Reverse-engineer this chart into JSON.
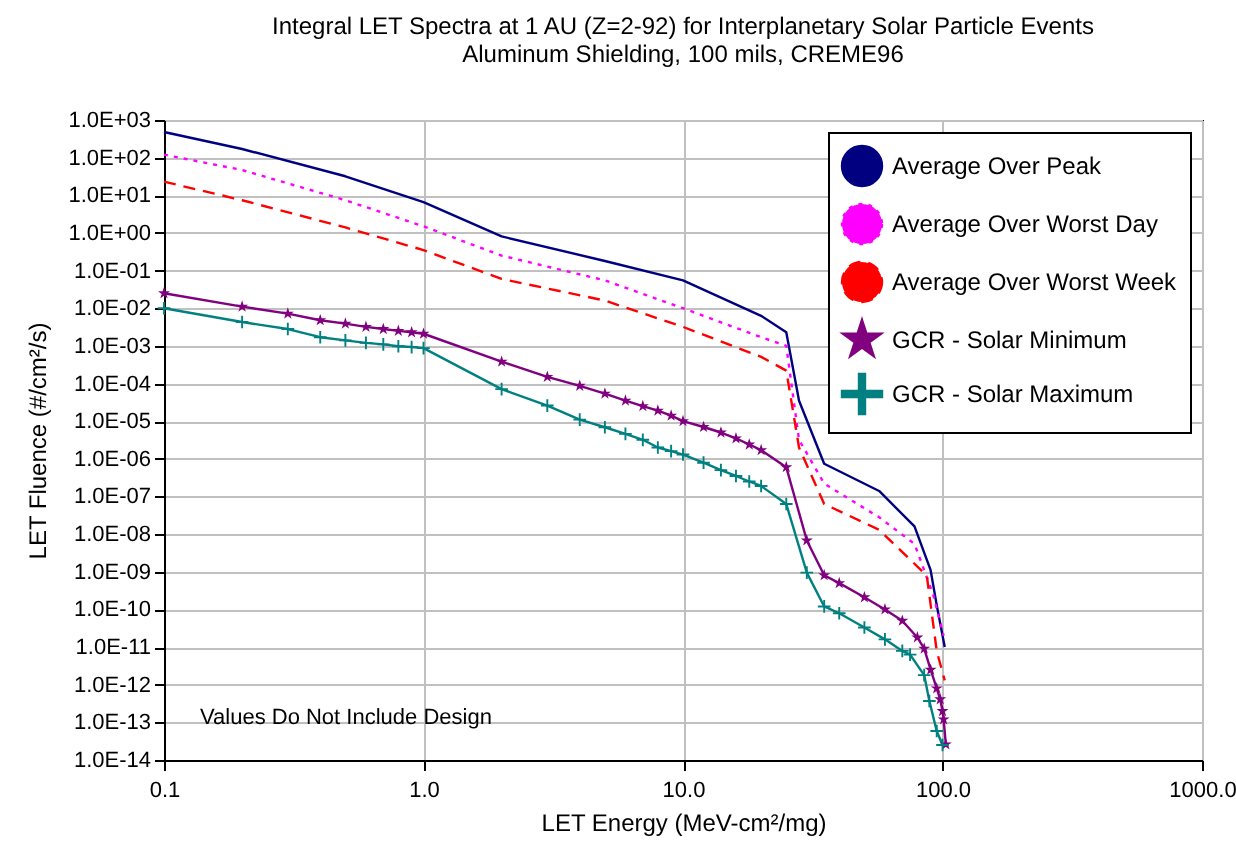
{
  "chart_data": {
    "type": "line",
    "title": "Integral LET Spectra at 1 AU (Z=2-92) for Interplanetary Solar Particle Events",
    "subtitle": "Aluminum Shielding, 100 mils, CREME96",
    "xlabel": "LET Energy (MeV-cm²/mg)",
    "ylabel": "LET Fluence (#/cm²/s)",
    "annotations": [
      "Values Do Not Include Design"
    ],
    "log": "xy",
    "grid": true,
    "legend": "top right",
    "xlim": [
      0.1,
      1000
    ],
    "xticks": [
      0.1,
      {
        "value": 1,
        "label": "1.0"
      },
      {
        "value": 10,
        "label": "10.0"
      },
      {
        "value": 100,
        "label": "100.0"
      },
      {
        "value": 1000,
        "label": "1000.0"
      }
    ],
    "ylim": [
      1e-14,
      1000
    ],
    "yticks": [
      {
        "value": 1000.0,
        "label": "1.0E+03"
      },
      {
        "value": 100.0,
        "label": "1.0E+02"
      },
      {
        "value": 10.0,
        "label": "1.0E+01"
      },
      {
        "value": 1,
        "label": "1.0E+00"
      },
      {
        "value": 0.1,
        "label": "1.0E-01"
      },
      {
        "value": 0.01,
        "label": "1.0E-02"
      },
      {
        "value": 0.001,
        "label": "1.0E-03"
      },
      {
        "value": 0.0001,
        "label": "1.0E-04"
      },
      {
        "value": 1e-05,
        "label": "1.0E-05"
      },
      {
        "value": 1e-06,
        "label": "1.0E-06"
      },
      {
        "value": 1e-07,
        "label": "1.0E-07"
      },
      {
        "value": 1e-08,
        "label": "1.0E-08"
      },
      {
        "value": 1e-09,
        "label": "1.0E-09"
      },
      {
        "value": 1e-10,
        "label": "1.0E-10"
      },
      {
        "value": 1e-11,
        "label": "1.0E-11"
      },
      {
        "value": 1e-12,
        "label": "1.0E-12"
      },
      {
        "value": 1e-13,
        "label": "1.0E-13"
      },
      {
        "value": 1e-14,
        "label": "1.0E-14"
      }
    ],
    "series": [
      {
        "name": "Average Over Peak",
        "color": "#000080",
        "line_style": "solid",
        "marker": "none",
        "x": [
          0.1,
          0.2,
          0.5,
          1,
          2,
          5,
          10,
          20,
          25,
          28,
          35,
          57,
          78,
          90,
          95,
          102
        ],
        "values": [
          480,
          170,
          32,
          6.6,
          0.81,
          0.18,
          0.055,
          0.0063,
          0.0023,
          3.5e-05,
          7.4e-07,
          1.4e-07,
          1.6e-08,
          1.1e-09,
          1.3e-10,
          1e-11
        ]
      },
      {
        "name": "Average Over Worst Day",
        "color": "#ff00ff",
        "line_style": "dotted",
        "marker": "none",
        "x": [
          0.1,
          0.2,
          0.5,
          1,
          2,
          5,
          10,
          20,
          25,
          28,
          35,
          57,
          78,
          92,
          101
        ],
        "values": [
          120,
          47,
          7.4,
          1.5,
          0.25,
          0.055,
          0.01,
          0.0017,
          0.001,
          3.2e-06,
          2.2e-07,
          2.8e-08,
          5.5e-09,
          2.5e-10,
          2e-11
        ]
      },
      {
        "name": "Average Over Worst Week",
        "color": "#ff0000",
        "line_style": "dashed",
        "marker": "none",
        "x": [
          0.1,
          0.2,
          0.5,
          1,
          2,
          5,
          10,
          20,
          25,
          28,
          35,
          57,
          87,
          95,
          102
        ],
        "values": [
          23,
          7.4,
          1.4,
          0.35,
          0.06,
          0.016,
          0.0032,
          0.00051,
          0.00022,
          2e-06,
          6.3e-08,
          1.3e-08,
          7.9e-10,
          7.9e-12,
          1.3e-12
        ]
      },
      {
        "name": "GCR - Solar Minimum",
        "color": "#800080",
        "line_style": "solid",
        "marker": "star",
        "x": [
          0.1,
          0.2,
          0.3,
          0.4,
          0.5,
          0.6,
          0.7,
          0.8,
          0.9,
          1,
          2,
          3,
          4,
          5,
          6,
          7,
          8,
          9,
          10,
          12,
          14,
          16,
          18,
          20,
          25,
          30,
          35,
          40,
          50,
          60,
          70,
          80,
          85,
          90,
          95,
          98,
          100,
          101,
          103
        ],
        "values": [
          0.025,
          0.011,
          0.0072,
          0.0048,
          0.0039,
          0.0032,
          0.0028,
          0.0025,
          0.0023,
          0.0021,
          0.00038,
          0.00015,
          8.7e-05,
          5.4e-05,
          3.5e-05,
          2.5e-05,
          1.9e-05,
          1.4e-05,
          1e-05,
          7e-06,
          5e-06,
          3.5e-06,
          2.4e-06,
          1.7e-06,
          6e-07,
          6.8e-09,
          8.1e-10,
          5e-10,
          2.1e-10,
          1e-10,
          5e-11,
          1.8e-11,
          9.1e-12,
          2.5e-12,
          8e-13,
          4.1e-13,
          2e-13,
          1.2e-13,
          2.6e-14
        ]
      },
      {
        "name": "GCR - Solar Maximum",
        "color": "#008080",
        "line_style": "solid",
        "marker": "cross",
        "x": [
          0.1,
          0.2,
          0.3,
          0.4,
          0.5,
          0.6,
          0.7,
          0.8,
          0.9,
          1,
          2,
          3,
          4,
          5,
          6,
          7,
          8,
          9,
          10,
          12,
          14,
          16,
          18,
          20,
          25,
          30,
          35,
          40,
          50,
          60,
          70,
          75,
          85,
          89,
          95,
          100
        ],
        "values": [
          0.01,
          0.0043,
          0.0028,
          0.0017,
          0.0014,
          0.0012,
          0.0011,
          0.00098,
          0.00093,
          0.00087,
          7.1e-05,
          2.6e-05,
          1.1e-05,
          6.9e-06,
          4.6e-06,
          3.2e-06,
          2e-06,
          1.6e-06,
          1.3e-06,
          7.9e-07,
          5e-07,
          3.5e-07,
          2.5e-07,
          1.9e-07,
          6.3e-08,
          9.5e-10,
          1.2e-10,
          7.9e-11,
          3.3e-11,
          1.6e-11,
          7.9e-12,
          6.3e-12,
          1.8e-12,
          3.7e-13,
          5.9e-14,
          2.5e-14
        ]
      }
    ]
  }
}
